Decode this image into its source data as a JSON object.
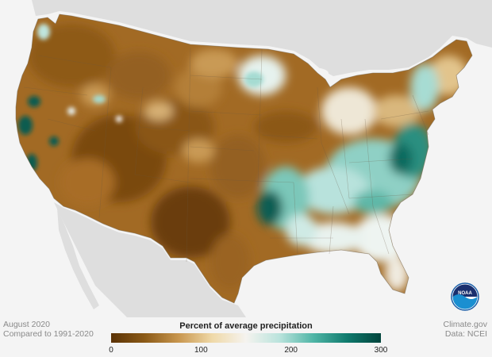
{
  "caption": {
    "month": "August 2020",
    "baseline": "Compared to 1991-2020"
  },
  "credits": {
    "source": "Climate.gov",
    "data": "Data: NCEI"
  },
  "legend": {
    "title": "Percent of average precipitation",
    "ticks": [
      "0",
      "100",
      "200",
      "300"
    ],
    "range": [
      0,
      300
    ],
    "colors": [
      "#5a3205",
      "#8b5a17",
      "#c8964e",
      "#efd9a8",
      "#f5f3ef",
      "#b9e3dc",
      "#4fb5a6",
      "#0f7a6d",
      "#01443c"
    ]
  },
  "logo": {
    "text": "NOAA",
    "color": "#1a5ea8"
  },
  "map": {
    "land_color": "#dedede",
    "ocean_color": "#f4f4f4",
    "regions": {
      "west": "dry",
      "southwest": "dry",
      "plains": "dry",
      "southeast": "wet",
      "mid_atlantic": "wet",
      "arkansas_louisiana": "very-wet",
      "california_coast": "very-wet-spots"
    }
  }
}
